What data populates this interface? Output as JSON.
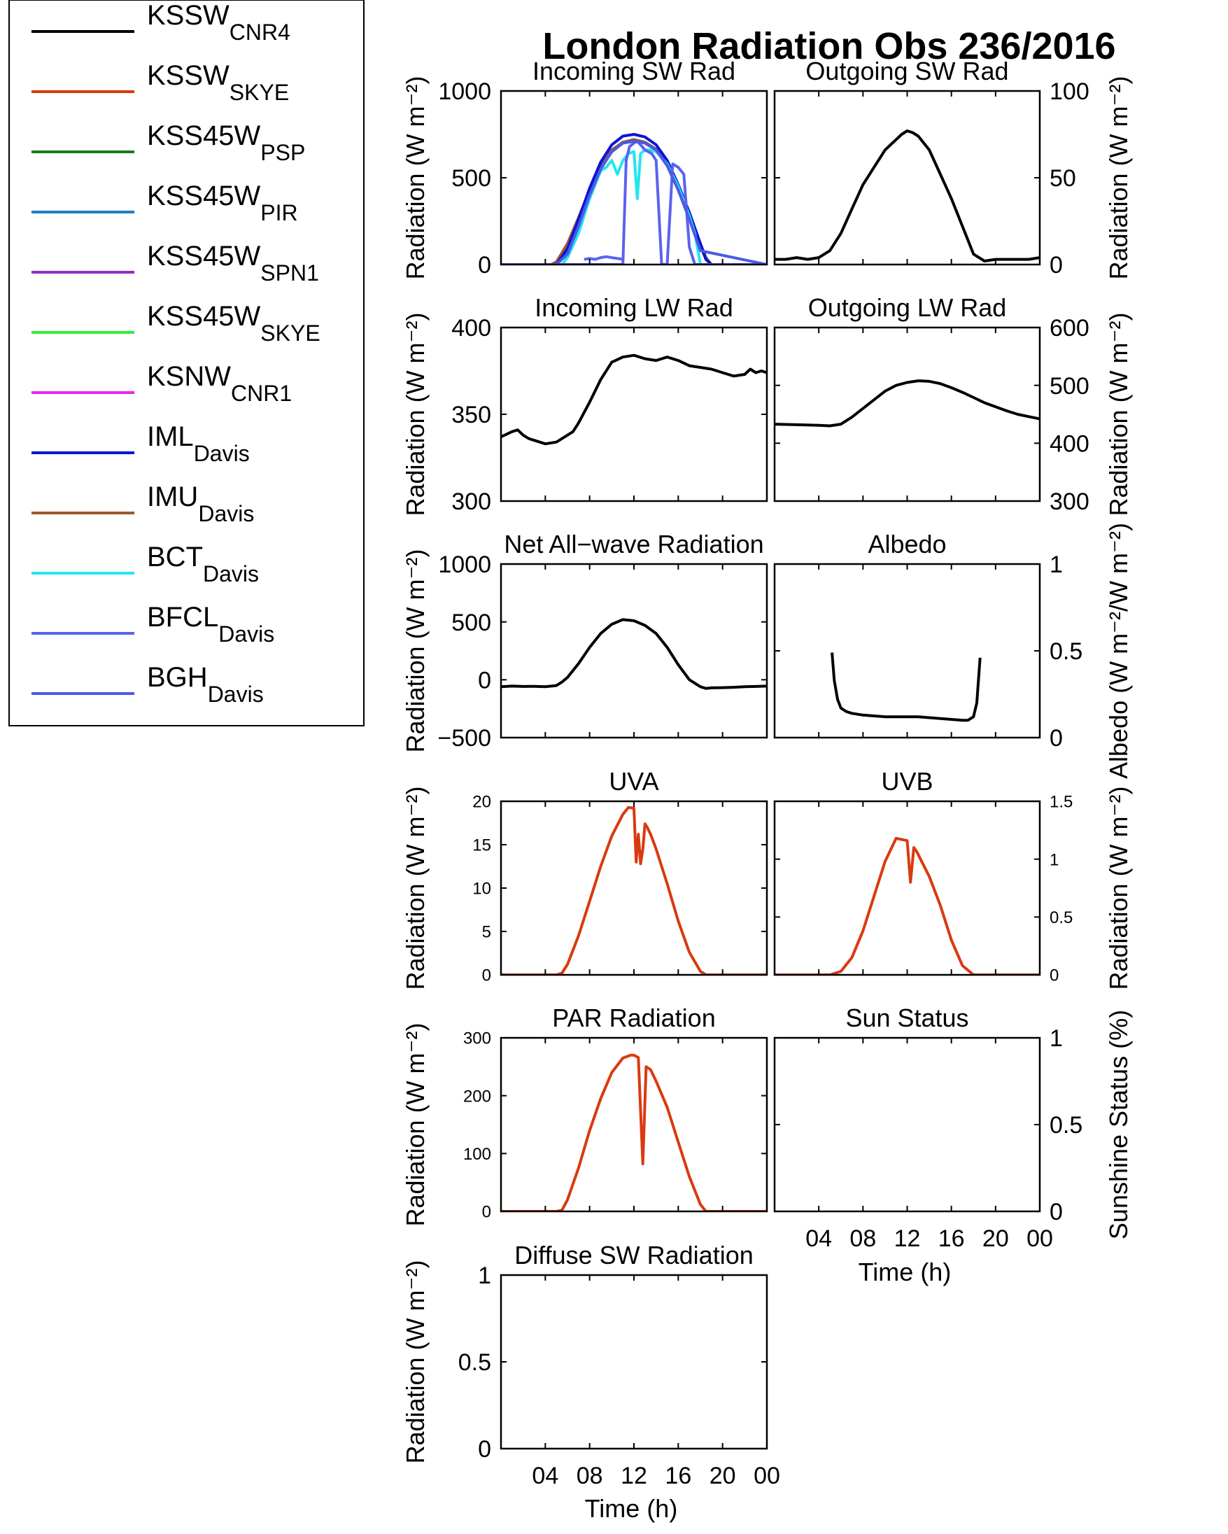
{
  "figure": {
    "title": "London Radiation Obs 236/2016",
    "xlabel": "Time (h)",
    "x_ticks": [
      "04",
      "08",
      "12",
      "16",
      "20",
      "00"
    ]
  },
  "legend": {
    "items": [
      {
        "name": "KSSW",
        "sub": "CNR4",
        "color": "#000000"
      },
      {
        "name": "KSSW",
        "sub": "SKYE",
        "color": "#d93a10"
      },
      {
        "name": "KSS45W",
        "sub": "PSP",
        "color": "#1a7a1a"
      },
      {
        "name": "KSS45W",
        "sub": "PIR",
        "color": "#1f7fbf"
      },
      {
        "name": "KSS45W",
        "sub": "SPN1",
        "color": "#8b2fc9"
      },
      {
        "name": "KSS45W",
        "sub": "SKYE",
        "color": "#33ee33"
      },
      {
        "name": "KSNW",
        "sub": "CNR1",
        "color": "#ee22ee"
      },
      {
        "name": "IML",
        "sub": "Davis",
        "color": "#0a14d8"
      },
      {
        "name": "IMU",
        "sub": "Davis",
        "color": "#9b5a2a"
      },
      {
        "name": "BCT",
        "sub": "Davis",
        "color": "#22e6ee"
      },
      {
        "name": "BFCL",
        "sub": "Davis",
        "color": "#5a63ee"
      },
      {
        "name": "BGH",
        "sub": "Davis",
        "color": "#4a5ae6"
      }
    ]
  },
  "chart_data": [
    {
      "type": "line",
      "title": "Incoming SW Rad",
      "ylabel": "Radiation (W m⁻²)",
      "ylim": [
        0,
        1000
      ],
      "yticks": [
        "0",
        "500",
        "1000"
      ],
      "xlim": [
        0,
        24
      ],
      "series": [
        {
          "color": "#000000",
          "x": [
            0,
            4.5,
            5,
            6,
            7,
            8,
            9,
            10,
            11,
            12,
            13,
            14,
            15,
            16,
            17,
            18,
            18.5,
            19,
            24
          ],
          "values": [
            0,
            0,
            10,
            110,
            260,
            420,
            560,
            650,
            700,
            715,
            700,
            660,
            570,
            430,
            270,
            110,
            30,
            0,
            0
          ]
        },
        {
          "color": "#9b5a2a",
          "x": [
            0,
            4.5,
            5,
            6,
            7,
            8,
            9,
            10,
            11,
            12,
            13,
            14,
            15,
            16,
            17,
            18,
            18.5,
            19,
            24
          ],
          "values": [
            0,
            0,
            15,
            120,
            270,
            430,
            570,
            660,
            705,
            720,
            705,
            665,
            575,
            440,
            280,
            120,
            40,
            0,
            0
          ]
        },
        {
          "color": "#0a14d8",
          "x": [
            0,
            5,
            6,
            7,
            8,
            9,
            10,
            11,
            12,
            13,
            14,
            15,
            16,
            17,
            18,
            18.5,
            19,
            24
          ],
          "values": [
            0,
            0,
            90,
            260,
            440,
            590,
            690,
            740,
            750,
            735,
            690,
            600,
            460,
            300,
            120,
            30,
            0,
            0
          ]
        },
        {
          "color": "#22e6ee",
          "x": [
            0,
            5.5,
            6,
            7,
            8,
            9,
            9.5,
            10,
            10.5,
            11,
            11.5,
            12,
            12.3,
            12.6,
            13,
            13.5,
            14,
            15,
            16,
            17,
            17.5,
            18,
            24
          ],
          "values": [
            0,
            0,
            40,
            180,
            380,
            540,
            560,
            600,
            520,
            600,
            640,
            650,
            380,
            640,
            660,
            660,
            650,
            580,
            450,
            280,
            180,
            0,
            0
          ]
        },
        {
          "color": "#5a63ee",
          "x": [
            0,
            11,
            11.3,
            11.6,
            12,
            12.3,
            12.6,
            13,
            13.3,
            13.6,
            14,
            14.5,
            15,
            15.5,
            16,
            16.5,
            17,
            17.5,
            24
          ],
          "values": [
            0,
            0,
            600,
            680,
            700,
            710,
            690,
            660,
            650,
            640,
            600,
            0,
            0,
            580,
            560,
            520,
            100,
            0,
            0
          ]
        },
        {
          "color": "#4a5ae6",
          "x": [
            0,
            5,
            6,
            7,
            8,
            9,
            10,
            11,
            12,
            13,
            14,
            15,
            16,
            17,
            18,
            24
          ],
          "values": [
            0,
            0,
            60,
            220,
            400,
            550,
            650,
            700,
            710,
            700,
            660,
            570,
            430,
            260,
            80,
            0
          ]
        },
        {
          "color": "#5a63ee",
          "x": [
            7.5,
            8,
            8.5,
            9,
            9.5,
            10,
            10.5,
            11
          ],
          "values": [
            30,
            35,
            30,
            40,
            45,
            40,
            35,
            30
          ]
        }
      ]
    },
    {
      "type": "line",
      "title": "Outgoing SW Rad",
      "ylabel": "Radiation (W m⁻²)",
      "ylim": [
        0,
        100
      ],
      "yticks": [
        "0",
        "50",
        "100"
      ],
      "xlim": [
        0,
        24
      ],
      "series": [
        {
          "color": "#000000",
          "x": [
            0,
            1,
            2,
            3,
            4,
            5,
            6,
            7,
            8,
            9,
            10,
            11,
            11.5,
            12,
            12.5,
            13,
            14,
            15,
            16,
            17,
            18,
            19,
            20,
            21,
            22,
            23,
            24
          ],
          "values": [
            3,
            3,
            4,
            3,
            4,
            8,
            18,
            32,
            46,
            56,
            66,
            72,
            75,
            77,
            76,
            74,
            66,
            52,
            38,
            22,
            6,
            2,
            3,
            3,
            3,
            3,
            4
          ]
        }
      ]
    },
    {
      "type": "line",
      "title": "Incoming LW Rad",
      "ylabel": "Radiation (W m⁻²)",
      "ylim": [
        300,
        400
      ],
      "yticks": [
        "300",
        "350",
        "400"
      ],
      "xlim": [
        0,
        24
      ],
      "series": [
        {
          "color": "#000000",
          "x": [
            0,
            1,
            1.5,
            2,
            2.5,
            3,
            4,
            5,
            6,
            6.5,
            7,
            8,
            9,
            10,
            11,
            12,
            13,
            14,
            15,
            16,
            17,
            18,
            19,
            20,
            21,
            22,
            22.5,
            23,
            23.5,
            24
          ],
          "values": [
            337,
            340,
            341,
            338,
            336,
            335,
            333,
            334,
            338,
            340,
            345,
            357,
            370,
            380,
            383,
            384,
            382,
            381,
            383,
            381,
            378,
            377,
            376,
            374,
            372,
            373,
            376,
            374,
            375,
            374
          ]
        }
      ]
    },
    {
      "type": "line",
      "title": "Outgoing LW Rad",
      "ylabel": "Radiation (W m⁻²)",
      "ylim": [
        300,
        600
      ],
      "yticks": [
        "300",
        "400",
        "500",
        "600"
      ],
      "xlim": [
        0,
        24
      ],
      "series": [
        {
          "color": "#000000",
          "x": [
            0,
            2,
            4,
            5,
            6,
            7,
            8,
            9,
            10,
            11,
            12,
            13,
            14,
            15,
            16,
            17,
            18,
            19,
            20,
            21,
            22,
            23,
            24
          ],
          "values": [
            433,
            432,
            431,
            430,
            433,
            445,
            460,
            475,
            490,
            500,
            505,
            508,
            507,
            503,
            496,
            488,
            479,
            470,
            463,
            456,
            450,
            446,
            442
          ]
        }
      ]
    },
    {
      "type": "line",
      "title": "Net All−wave Radiation",
      "ylabel": "Radiation (W m⁻²)",
      "ylim": [
        -500,
        1000
      ],
      "yticks": [
        "−500",
        "0",
        "500",
        "1000"
      ],
      "xlim": [
        0,
        24
      ],
      "series": [
        {
          "color": "#000000",
          "x": [
            0,
            1,
            2,
            3,
            4,
            5,
            5.5,
            6,
            7,
            8,
            9,
            10,
            11,
            12,
            13,
            14,
            15,
            16,
            17,
            18,
            18.5,
            19,
            20,
            21,
            22,
            23,
            24
          ],
          "values": [
            -60,
            -55,
            -58,
            -57,
            -60,
            -50,
            -20,
            20,
            140,
            280,
            400,
            480,
            520,
            510,
            470,
            400,
            280,
            130,
            0,
            -60,
            -75,
            -70,
            -68,
            -65,
            -60,
            -58,
            -55
          ]
        }
      ]
    },
    {
      "type": "line",
      "title": "Albedo",
      "ylabel": "Albedo (W m⁻²/W m⁻²)",
      "ylim": [
        0,
        1
      ],
      "yticks": [
        "0",
        "0.5",
        "1"
      ],
      "xlim": [
        0,
        24
      ],
      "series": [
        {
          "color": "#000000",
          "x": [
            5.2,
            5.4,
            5.7,
            6,
            6.5,
            7,
            8,
            9,
            10,
            11,
            12,
            13,
            14,
            15,
            16,
            17,
            17.5,
            18,
            18.3,
            18.6
          ],
          "values": [
            0.49,
            0.33,
            0.22,
            0.17,
            0.15,
            0.14,
            0.13,
            0.125,
            0.12,
            0.12,
            0.12,
            0.12,
            0.115,
            0.11,
            0.105,
            0.1,
            0.1,
            0.12,
            0.2,
            0.46
          ]
        }
      ]
    },
    {
      "type": "line",
      "title": "UVA",
      "ylabel": "Radiation (W m⁻²)",
      "ylim": [
        0,
        20
      ],
      "yticks": [
        "0",
        "5",
        "10",
        "15",
        "20"
      ],
      "xlim": [
        0,
        24
      ],
      "series": [
        {
          "color": "#d93a10",
          "x": [
            0,
            5,
            5.5,
            6,
            7,
            8,
            9,
            10,
            11,
            11.5,
            12,
            12.2,
            12.4,
            12.6,
            12.8,
            13,
            13.2,
            13.5,
            14,
            15,
            16,
            17,
            18,
            18.5,
            19,
            24
          ],
          "values": [
            0,
            0,
            0.2,
            1.2,
            4.5,
            8.5,
            12.5,
            16,
            18.5,
            19.3,
            19.2,
            13,
            16.2,
            12.8,
            14.5,
            17.4,
            17,
            16.2,
            14.5,
            10.5,
            6.2,
            2.6,
            0.4,
            0,
            0,
            0
          ]
        }
      ]
    },
    {
      "type": "line",
      "title": "UVB",
      "ylabel": "Radiation (W m⁻²)",
      "ylim": [
        0,
        1.5
      ],
      "yticks": [
        "0",
        "0.5",
        "1",
        "1.5"
      ],
      "xlim": [
        0,
        24
      ],
      "series": [
        {
          "color": "#d93a10",
          "x": [
            0,
            5,
            6,
            7,
            8,
            9,
            10,
            11,
            12,
            12.3,
            12.6,
            12.9,
            13.2,
            14,
            15,
            16,
            17,
            18,
            18.5,
            19,
            24
          ],
          "values": [
            0,
            0,
            0.03,
            0.15,
            0.38,
            0.68,
            0.98,
            1.18,
            1.16,
            0.8,
            1.1,
            1.06,
            1.0,
            0.85,
            0.6,
            0.3,
            0.08,
            0,
            0,
            0,
            0
          ]
        }
      ]
    },
    {
      "type": "line",
      "title": "PAR Radiation",
      "ylabel": "Radiation (W m⁻²)",
      "ylim": [
        0,
        300
      ],
      "yticks": [
        "0",
        "100",
        "200",
        "300"
      ],
      "xlim": [
        0,
        24
      ],
      "series": [
        {
          "color": "#d93a10",
          "x": [
            0,
            5,
            5.5,
            6,
            7,
            8,
            9,
            10,
            11,
            11.7,
            12,
            12.4,
            12.8,
            13.1,
            13.5,
            14,
            15,
            16,
            17,
            18,
            18.5,
            19,
            24
          ],
          "values": [
            0,
            0,
            2,
            20,
            75,
            140,
            195,
            240,
            265,
            270,
            270,
            266,
            82,
            250,
            245,
            225,
            180,
            120,
            60,
            12,
            0,
            0,
            0
          ]
        }
      ]
    },
    {
      "type": "line",
      "title": "Sun Status",
      "ylabel": "Sunshine Status (%)",
      "ylim": [
        0,
        1
      ],
      "yticks": [
        "0",
        "0.5",
        "1"
      ],
      "xlim": [
        0,
        24
      ],
      "series": []
    },
    {
      "type": "line",
      "title": "Diffuse SW Radiation",
      "ylabel": "Radiation (W m⁻²)",
      "ylim": [
        0,
        1
      ],
      "yticks": [
        "0",
        "0.5",
        "1"
      ],
      "xlim": [
        0,
        24
      ],
      "series": []
    }
  ]
}
